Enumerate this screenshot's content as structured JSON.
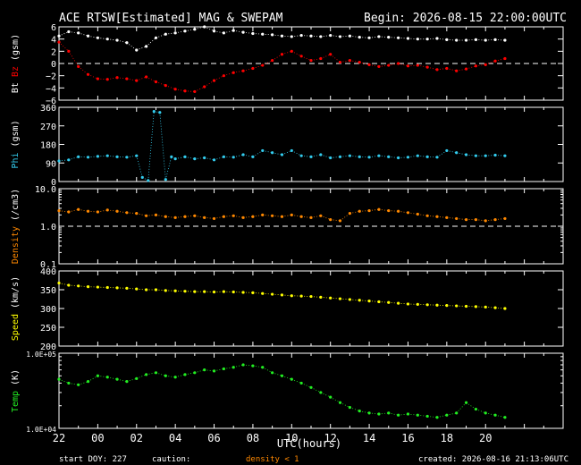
{
  "header": {
    "title": "ACE RTSW[Estimated] MAG & SWEPAM",
    "begin": "Begin: 2026-08-15 22:00:00UTC"
  },
  "footer": {
    "start_doy": "start DOY: 227",
    "caution": "caution:",
    "density_note": "density < 1",
    "created": "created: 2026-08-16 21:13:06UTC"
  },
  "colors": {
    "bt": "#ffffff",
    "bz": "#ff0000",
    "phi": "#33ccee",
    "density": "#ff8800",
    "speed": "#ffff00",
    "temp": "#22ee22",
    "axis": "#ffffff",
    "background": "#000000"
  },
  "chart_data": {
    "type": "scatter",
    "xlabel": "UTC(hours)",
    "x_tick_labels": [
      "22",
      "00",
      "02",
      "04",
      "06",
      "08",
      "10",
      "12",
      "14",
      "16",
      "18",
      "20"
    ],
    "x_range_hours": [
      -2,
      24
    ],
    "panels": [
      {
        "id": "mag",
        "ylabel_parts": [
          {
            "text": "Bt",
            "color": "#ffffff"
          },
          {
            "text": "Bz",
            "color": "#ff0000"
          },
          {
            "text": "(gsm)",
            "color": "#ffffff"
          }
        ],
        "ylim": [
          -6,
          6
        ],
        "scale": "linear",
        "yticks": [
          6,
          4,
          2,
          0,
          -2,
          -4,
          -6
        ],
        "ytick_labels": [
          "6",
          "4",
          "2",
          "0",
          "−2",
          "−4",
          "−6"
        ],
        "reference_line": 0,
        "series": [
          {
            "name": "Bt",
            "color": "#ffffff",
            "x": [
              -2,
              -1.5,
              -1,
              -0.5,
              0,
              0.5,
              1,
              1.5,
              2,
              2.5,
              3,
              3.5,
              4,
              4.5,
              5,
              5.5,
              6,
              6.5,
              7,
              7.5,
              8,
              8.5,
              9,
              9.5,
              10,
              10.5,
              11,
              11.5,
              12,
              12.5,
              13,
              13.5,
              14,
              14.5,
              15,
              15.5,
              16,
              16.5,
              17,
              17.5,
              18,
              18.5,
              19,
              19.5,
              20,
              20.5,
              21
            ],
            "y": [
              4.5,
              5.2,
              5,
              4.5,
              4.2,
              4,
              3.8,
              3.4,
              2.2,
              2.8,
              4.2,
              4.8,
              5,
              5.3,
              5.6,
              6,
              5.3,
              5,
              5.4,
              5.1,
              4.9,
              4.8,
              4.7,
              4.5,
              4.4,
              4.6,
              4.5,
              4.4,
              4.6,
              4.4,
              4.5,
              4.3,
              4.2,
              4.4,
              4.3,
              4.2,
              4.1,
              4,
              4,
              4.1,
              3.9,
              3.8,
              3.8,
              3.9,
              3.8,
              3.9,
              3.8
            ]
          },
          {
            "name": "Bz",
            "color": "#ff0000",
            "x": [
              -2,
              -1.5,
              -1,
              -0.5,
              0,
              0.5,
              1,
              1.5,
              2,
              2.5,
              3,
              3.5,
              4,
              4.5,
              5,
              5.5,
              6,
              6.5,
              7,
              7.5,
              8,
              8.5,
              9,
              9.5,
              10,
              10.5,
              11,
              11.5,
              12,
              12.5,
              13,
              13.5,
              14,
              14.5,
              15,
              15.5,
              16,
              16.5,
              17,
              17.5,
              18,
              18.5,
              19,
              19.5,
              20,
              20.5,
              21
            ],
            "y": [
              3.5,
              2,
              -0.5,
              -1.8,
              -2.5,
              -2.6,
              -2.3,
              -2.5,
              -2.8,
              -2.2,
              -3,
              -3.6,
              -4.2,
              -4.5,
              -4.6,
              -3.8,
              -2.8,
              -2,
              -1.5,
              -1.2,
              -0.8,
              -0.3,
              0.5,
              1.5,
              2,
              1.2,
              0.5,
              0.8,
              1.5,
              0.2,
              0.5,
              0.2,
              -0.2,
              -0.5,
              -0.3,
              0,
              -0.4,
              -0.3,
              -0.6,
              -1,
              -0.8,
              -1.2,
              -0.9,
              -0.4,
              -0.2,
              0.4,
              0.8
            ]
          }
        ]
      },
      {
        "id": "phi",
        "ylabel_parts": [
          {
            "text": "Phi",
            "color": "#33ccee"
          },
          {
            "text": "(gsm)",
            "color": "#ffffff"
          }
        ],
        "ylim": [
          0,
          360
        ],
        "scale": "linear",
        "yticks": [
          360,
          270,
          180,
          90,
          0
        ],
        "ytick_labels": [
          "360",
          "270",
          "180",
          "90",
          "0"
        ],
        "series": [
          {
            "name": "Phi",
            "color": "#33ccee",
            "x": [
              -2,
              -1.5,
              -1,
              -0.5,
              0,
              0.5,
              1,
              1.5,
              2,
              2.3,
              2.6,
              2.9,
              3.2,
              3.5,
              3.8,
              4,
              4.5,
              5,
              5.5,
              6,
              6.5,
              7,
              7.5,
              8,
              8.5,
              9,
              9.5,
              10,
              10.5,
              11,
              11.5,
              12,
              12.5,
              13,
              13.5,
              14,
              14.5,
              15,
              15.5,
              16,
              16.5,
              17,
              17.5,
              18,
              18.5,
              19,
              19.5,
              20,
              20.5,
              21
            ],
            "y": [
              100,
              105,
              120,
              118,
              122,
              125,
              120,
              118,
              125,
              20,
              5,
              340,
              335,
              10,
              120,
              110,
              120,
              110,
              115,
              105,
              120,
              118,
              130,
              120,
              150,
              140,
              130,
              150,
              125,
              120,
              130,
              115,
              120,
              125,
              120,
              118,
              125,
              120,
              115,
              118,
              125,
              120,
              118,
              150,
              140,
              130,
              125,
              125,
              128,
              125
            ]
          }
        ]
      },
      {
        "id": "density",
        "ylabel_parts": [
          {
            "text": "Density",
            "color": "#ff8800"
          },
          {
            "text": "(/cm3)",
            "color": "#ffffff"
          }
        ],
        "ylim": [
          0.1,
          10
        ],
        "scale": "log",
        "yticks": [
          10,
          1,
          0.1
        ],
        "ytick_labels": [
          "10.0",
          "1.0",
          "0.1"
        ],
        "reference_line": 1,
        "series": [
          {
            "name": "Density",
            "color": "#ff8800",
            "x": [
              -2,
              -1.5,
              -1,
              -0.5,
              0,
              0.5,
              1,
              1.5,
              2,
              2.5,
              3,
              3.5,
              4,
              4.5,
              5,
              5.5,
              6,
              6.5,
              7,
              7.5,
              8,
              8.5,
              9,
              9.5,
              10,
              10.5,
              11,
              11.5,
              12,
              12.5,
              13,
              13.5,
              14,
              14.5,
              15,
              15.5,
              16,
              16.5,
              17,
              17.5,
              18,
              18.5,
              19,
              19.5,
              20,
              20.5,
              21
            ],
            "y": [
              2.6,
              2.4,
              2.8,
              2.5,
              2.4,
              2.7,
              2.5,
              2.3,
              2.2,
              1.9,
              2,
              1.8,
              1.7,
              1.8,
              1.9,
              1.7,
              1.6,
              1.8,
              1.9,
              1.7,
              1.8,
              2,
              1.9,
              1.8,
              2,
              1.8,
              1.7,
              1.9,
              1.5,
              1.4,
              2.2,
              2.5,
              2.6,
              2.8,
              2.6,
              2.5,
              2.3,
              2.1,
              1.9,
              1.8,
              1.7,
              1.6,
              1.5,
              1.5,
              1.4,
              1.5,
              1.6
            ]
          }
        ]
      },
      {
        "id": "speed",
        "ylabel_parts": [
          {
            "text": "Speed",
            "color": "#ffff00"
          },
          {
            "text": "(km/s)",
            "color": "#ffffff"
          }
        ],
        "ylim": [
          200,
          400
        ],
        "scale": "linear",
        "yticks": [
          400,
          350,
          300,
          250,
          200
        ],
        "ytick_labels": [
          "400",
          "350",
          "300",
          "250",
          "200"
        ],
        "series": [
          {
            "name": "Speed",
            "color": "#ffff00",
            "x": [
              -2,
              -1.5,
              -1,
              -0.5,
              0,
              0.5,
              1,
              1.5,
              2,
              2.5,
              3,
              3.5,
              4,
              4.5,
              5,
              5.5,
              6,
              6.5,
              7,
              7.5,
              8,
              8.5,
              9,
              9.5,
              10,
              10.5,
              11,
              11.5,
              12,
              12.5,
              13,
              13.5,
              14,
              14.5,
              15,
              15.5,
              16,
              16.5,
              17,
              17.5,
              18,
              18.5,
              19,
              19.5,
              20,
              20.5,
              21
            ],
            "y": [
              368,
              362,
              360,
              358,
              357,
              356,
              355,
              354,
              352,
              350,
              350,
              348,
              347,
              346,
              345,
              345,
              344,
              345,
              344,
              343,
              342,
              340,
              338,
              336,
              334,
              333,
              332,
              330,
              328,
              326,
              324,
              322,
              320,
              318,
              316,
              314,
              312,
              311,
              310,
              309,
              308,
              307,
              306,
              305,
              304,
              302,
              300
            ]
          }
        ]
      },
      {
        "id": "temp",
        "ylabel_parts": [
          {
            "text": "Temp",
            "color": "#22ee22"
          },
          {
            "text": "(K)",
            "color": "#ffffff"
          }
        ],
        "ylim": [
          10000,
          100000
        ],
        "scale": "log",
        "yticks": [
          100000,
          10000
        ],
        "ytick_labels": [
          "1.0E+05",
          "1.0E+04"
        ],
        "series": [
          {
            "name": "Temp",
            "color": "#22ee22",
            "x": [
              -2,
              -1.5,
              -1,
              -0.5,
              0,
              0.5,
              1,
              1.5,
              2,
              2.5,
              3,
              3.5,
              4,
              4.5,
              5,
              5.5,
              6,
              6.5,
              7,
              7.5,
              8,
              8.5,
              9,
              9.5,
              10,
              10.5,
              11,
              11.5,
              12,
              12.5,
              13,
              13.5,
              14,
              14.5,
              15,
              15.5,
              16,
              16.5,
              17,
              17.5,
              18,
              18.5,
              19,
              19.5,
              20,
              20.5,
              21
            ],
            "y": [
              45000,
              40000,
              38000,
              42000,
              50000,
              48000,
              45000,
              42000,
              46000,
              52000,
              55000,
              50000,
              48000,
              52000,
              55000,
              60000,
              58000,
              62000,
              65000,
              70000,
              68000,
              65000,
              55000,
              50000,
              45000,
              40000,
              35000,
              30000,
              26000,
              22000,
              19000,
              17000,
              16000,
              15500,
              16000,
              15000,
              15500,
              15000,
              14500,
              14000,
              15000,
              16000,
              22000,
              18000,
              16000,
              15000,
              14000
            ]
          }
        ]
      }
    ]
  }
}
